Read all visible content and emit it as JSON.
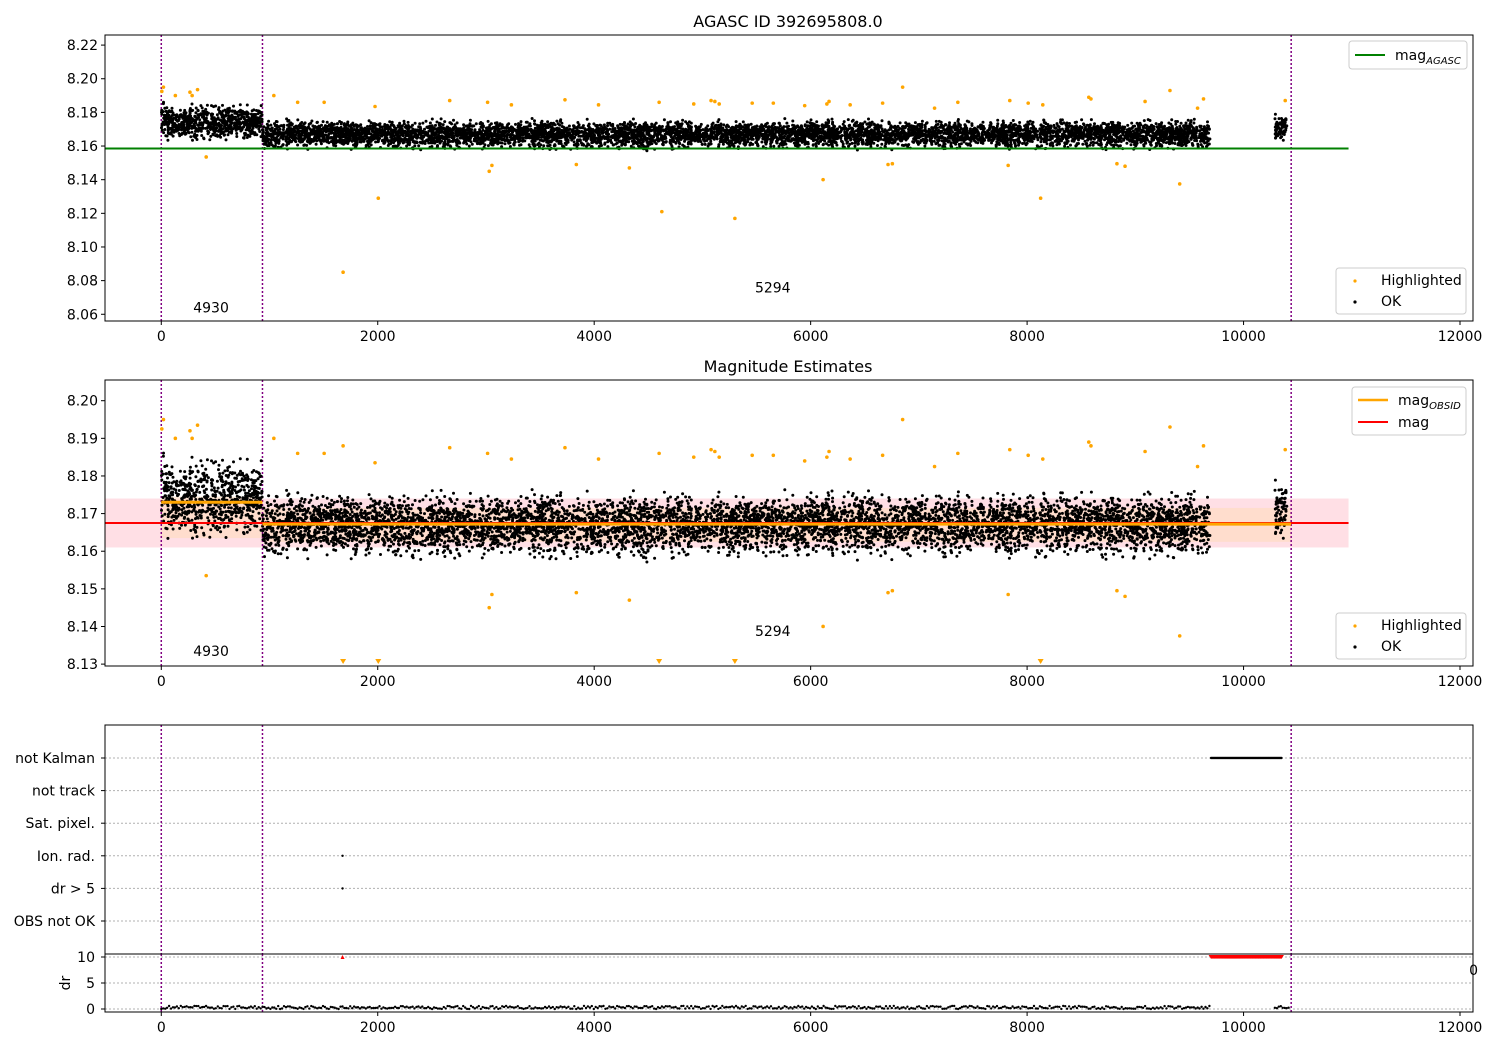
{
  "figure": {
    "title_top": "AGASC ID 392695808.0",
    "title_mid": "Magnitude Estimates"
  },
  "colors": {
    "ok": "#000000",
    "highlighted": "#ffa500",
    "mag_agasc": "#008000",
    "mag_obsid": "#ffa500",
    "mag": "#ff0000",
    "obsid_line": "#800080",
    "band_red": "#ffc0cb",
    "band_orange": "#ffdab9",
    "flag_red": "#ff0000"
  },
  "chart_data": [
    {
      "type": "scatter",
      "title": "AGASC ID 392695808.0",
      "xlim": [
        -520,
        12120
      ],
      "ylim": [
        8.056,
        8.226
      ],
      "xticks": [
        0,
        2000,
        4000,
        6000,
        8000,
        10000,
        12000
      ],
      "yticks": [
        8.06,
        8.08,
        8.1,
        8.12,
        8.14,
        8.16,
        8.18,
        8.2,
        8.22
      ],
      "ytick_labels": [
        "8.06",
        "8.08",
        "8.10",
        "8.12",
        "8.14",
        "8.16",
        "8.18",
        "8.20",
        "8.22"
      ],
      "obsid_boundaries": [
        0,
        935,
        10440
      ],
      "obsid_labels": [
        {
          "text": "4930",
          "x": 460,
          "y": 8.061
        },
        {
          "text": "5294",
          "x": 5650,
          "y": 8.073
        }
      ],
      "lines": [
        {
          "name": "mag_AGASC",
          "x": [
            -520,
            10970
          ],
          "y": [
            8.1585,
            8.1585
          ]
        }
      ],
      "ok_segments": [
        {
          "x_range": [
            0,
            935
          ],
          "y_center": 8.174,
          "y_spread": 0.01
        },
        {
          "x_range": [
            935,
            9690
          ],
          "y_center": 8.167,
          "y_spread": 0.008
        },
        {
          "x_range": [
            10290,
            10400
          ],
          "y_center": 8.171,
          "y_spread": 0.007
        }
      ],
      "highlighted": {
        "x": [
          5,
          20,
          130,
          265,
          285,
          335,
          415,
          1040,
          1260,
          1505,
          1680,
          1975,
          2005,
          2665,
          3015,
          3030,
          3055,
          3235,
          3730,
          3835,
          4040,
          4325,
          4600,
          4625,
          4920,
          5080,
          5115,
          5155,
          5300,
          5460,
          5655,
          5945,
          6115,
          6150,
          6170,
          6365,
          6665,
          6715,
          6755,
          6850,
          7145,
          7360,
          7825,
          7840,
          8010,
          8125,
          8145,
          8570,
          8590,
          8830,
          8905,
          9090,
          9320,
          9410,
          9575,
          9630,
          10385
        ],
        "y": [
          8.1925,
          8.195,
          8.19,
          8.192,
          8.19,
          8.1935,
          8.1535,
          8.19,
          8.186,
          8.186,
          8.085,
          8.1835,
          8.129,
          8.187,
          8.186,
          8.145,
          8.1485,
          8.1845,
          8.1875,
          8.149,
          8.1845,
          8.147,
          8.186,
          8.121,
          8.185,
          8.187,
          8.1865,
          8.185,
          8.117,
          8.1855,
          8.1855,
          8.184,
          8.14,
          8.185,
          8.1865,
          8.1845,
          8.1855,
          8.149,
          8.1495,
          8.195,
          8.1825,
          8.186,
          8.1485,
          8.187,
          8.1855,
          8.129,
          8.1845,
          8.189,
          8.188,
          8.1495,
          8.148,
          8.1865,
          8.193,
          8.1375,
          8.1825,
          8.188,
          8.187
        ]
      },
      "legends": [
        {
          "location": "upper right",
          "entries": [
            "mag_AGASC"
          ]
        },
        {
          "location": "lower right",
          "entries": [
            "Highlighted",
            "OK"
          ]
        }
      ],
      "legend_text": {
        "mag_prefix": "mag",
        "mag_agasc_sub": "AGASC",
        "highlighted": "Highlighted",
        "ok": "OK"
      }
    },
    {
      "type": "scatter",
      "title": "Magnitude Estimates",
      "xlim": [
        -520,
        12120
      ],
      "ylim": [
        8.1295,
        8.2055
      ],
      "xticks": [
        0,
        2000,
        4000,
        6000,
        8000,
        10000,
        12000
      ],
      "yticks": [
        8.13,
        8.14,
        8.15,
        8.16,
        8.17,
        8.18,
        8.19,
        8.2
      ],
      "ytick_labels": [
        "8.13",
        "8.14",
        "8.15",
        "8.16",
        "8.17",
        "8.18",
        "8.19",
        "8.20"
      ],
      "obsid_boundaries": [
        0,
        935,
        10440
      ],
      "obsid_labels": [
        {
          "text": "4930",
          "x": 460,
          "y": 8.1322
        },
        {
          "text": "5294",
          "x": 5650,
          "y": 8.1375
        }
      ],
      "bands": [
        {
          "name": "mag_range",
          "x": [
            -520,
            10970
          ],
          "y": [
            8.161,
            8.174
          ],
          "color": "band_red"
        },
        {
          "name": "obsid_4930_range",
          "x": [
            0,
            935
          ],
          "y": [
            8.1635,
            8.1745
          ],
          "color": "band_orange"
        },
        {
          "name": "obsid_5294_range",
          "x": [
            935,
            10440
          ],
          "y": [
            8.1625,
            8.1715
          ],
          "color": "band_orange"
        }
      ],
      "lines": [
        {
          "name": "mag",
          "x": [
            -520,
            10970
          ],
          "y": [
            8.1675,
            8.1675
          ]
        },
        {
          "name": "mag_OBSID_4930",
          "x": [
            0,
            935
          ],
          "y": [
            8.173,
            8.173
          ]
        },
        {
          "name": "mag_OBSID_5294",
          "x": [
            935,
            10440
          ],
          "y": [
            8.1672,
            8.1672
          ]
        }
      ],
      "ok_segments": [
        {
          "x_range": [
            0,
            935
          ],
          "y_center": 8.174,
          "y_spread": 0.01
        },
        {
          "x_range": [
            935,
            9690
          ],
          "y_center": 8.167,
          "y_spread": 0.008
        },
        {
          "x_range": [
            10290,
            10400
          ],
          "y_center": 8.171,
          "y_spread": 0.007
        }
      ],
      "highlighted": {
        "x": [
          5,
          20,
          130,
          265,
          285,
          335,
          415,
          1040,
          1260,
          1505,
          1680,
          1975,
          2665,
          3015,
          3030,
          3055,
          3235,
          3730,
          3835,
          4040,
          4325,
          4600,
          4920,
          5080,
          5115,
          5155,
          5460,
          5655,
          5945,
          6115,
          6150,
          6170,
          6365,
          6665,
          6715,
          6755,
          6850,
          7145,
          7360,
          7825,
          7840,
          8010,
          8145,
          8570,
          8590,
          8830,
          8905,
          9090,
          9320,
          9410,
          9575,
          9630,
          10385
        ],
        "y": [
          8.1925,
          8.195,
          8.19,
          8.192,
          8.19,
          8.1935,
          8.1535,
          8.19,
          8.186,
          8.186,
          8.188,
          8.1835,
          8.1875,
          8.186,
          8.145,
          8.1485,
          8.1845,
          8.1875,
          8.149,
          8.1845,
          8.147,
          8.186,
          8.185,
          8.187,
          8.1865,
          8.185,
          8.1855,
          8.1855,
          8.184,
          8.14,
          8.185,
          8.1865,
          8.1845,
          8.1855,
          8.149,
          8.1495,
          8.195,
          8.1825,
          8.186,
          8.1485,
          8.187,
          8.1855,
          8.1845,
          8.189,
          8.188,
          8.1495,
          8.148,
          8.1865,
          8.193,
          8.1375,
          8.1825,
          8.188,
          8.187
        ]
      },
      "out_of_range_low_x": [
        1680,
        2005,
        4600,
        5300,
        8125
      ],
      "legends": [
        {
          "location": "upper right",
          "entries": [
            "mag_OBSID",
            "mag"
          ]
        },
        {
          "location": "lower right",
          "entries": [
            "Highlighted",
            "OK"
          ]
        }
      ],
      "legend_text": {
        "mag_prefix": "mag",
        "mag_obsid_sub": "OBSID",
        "mag": "mag",
        "highlighted": "Highlighted",
        "ok": "OK"
      }
    },
    {
      "type": "scatter",
      "title": "",
      "xlim": [
        -520,
        12120
      ],
      "flag_rows": [
        "not Kalman",
        "not track",
        "Sat. pixel.",
        "Ion. rad.",
        "dr > 5",
        "OBS not OK"
      ],
      "flag_points": [
        {
          "row": "not Kalman",
          "x_range": [
            9700,
            10350
          ],
          "count": 70
        },
        {
          "row": "Ion. rad.",
          "x": [
            1675
          ]
        },
        {
          "row": "dr > 5",
          "x": [
            1675
          ]
        }
      ],
      "obsid_boundaries": [
        0,
        935,
        10440
      ]
    },
    {
      "type": "scatter",
      "title": "",
      "xlim": [
        -520,
        12120
      ],
      "ylim": [
        0,
        10
      ],
      "ylabel": "dr",
      "xticks": [
        0,
        2000,
        4000,
        6000,
        8000,
        10000,
        12000
      ],
      "yticks": [
        0,
        5,
        10
      ],
      "ytick_labels": [
        "0",
        "5",
        "10"
      ],
      "clip_label": "0",
      "dr_ok": {
        "x_ranges": [
          [
            0,
            9690
          ],
          [
            10290,
            10430
          ]
        ],
        "y_max": 0.6
      },
      "dr_clipped": {
        "x_range": [
          9700,
          10350
        ],
        "count": 70,
        "y": 10
      },
      "dr_clipped_extra_x": [
        1675
      ],
      "obsid_boundaries": [
        0,
        935,
        10440
      ]
    }
  ]
}
